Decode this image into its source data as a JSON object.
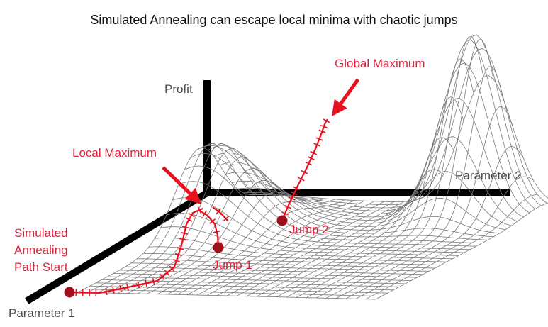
{
  "title": "Simulated Annealing can escape local minima with chaotic jumps",
  "axes": {
    "z_label": "Profit",
    "x_label": "Parameter 1",
    "y_label": "Parameter 2"
  },
  "annotations": {
    "global_max": "Global Maximum",
    "local_max": "Local Maximum",
    "path_start": [
      "Simulated",
      "Annealing",
      "Path Start"
    ],
    "jump1": "Jump 1",
    "jump2": "Jump 2"
  },
  "colors": {
    "axis": "#000000",
    "mesh": "#7a7a7a",
    "path": "#e8101e",
    "marker": "#a0101c",
    "label_red": "#e0203a"
  }
}
